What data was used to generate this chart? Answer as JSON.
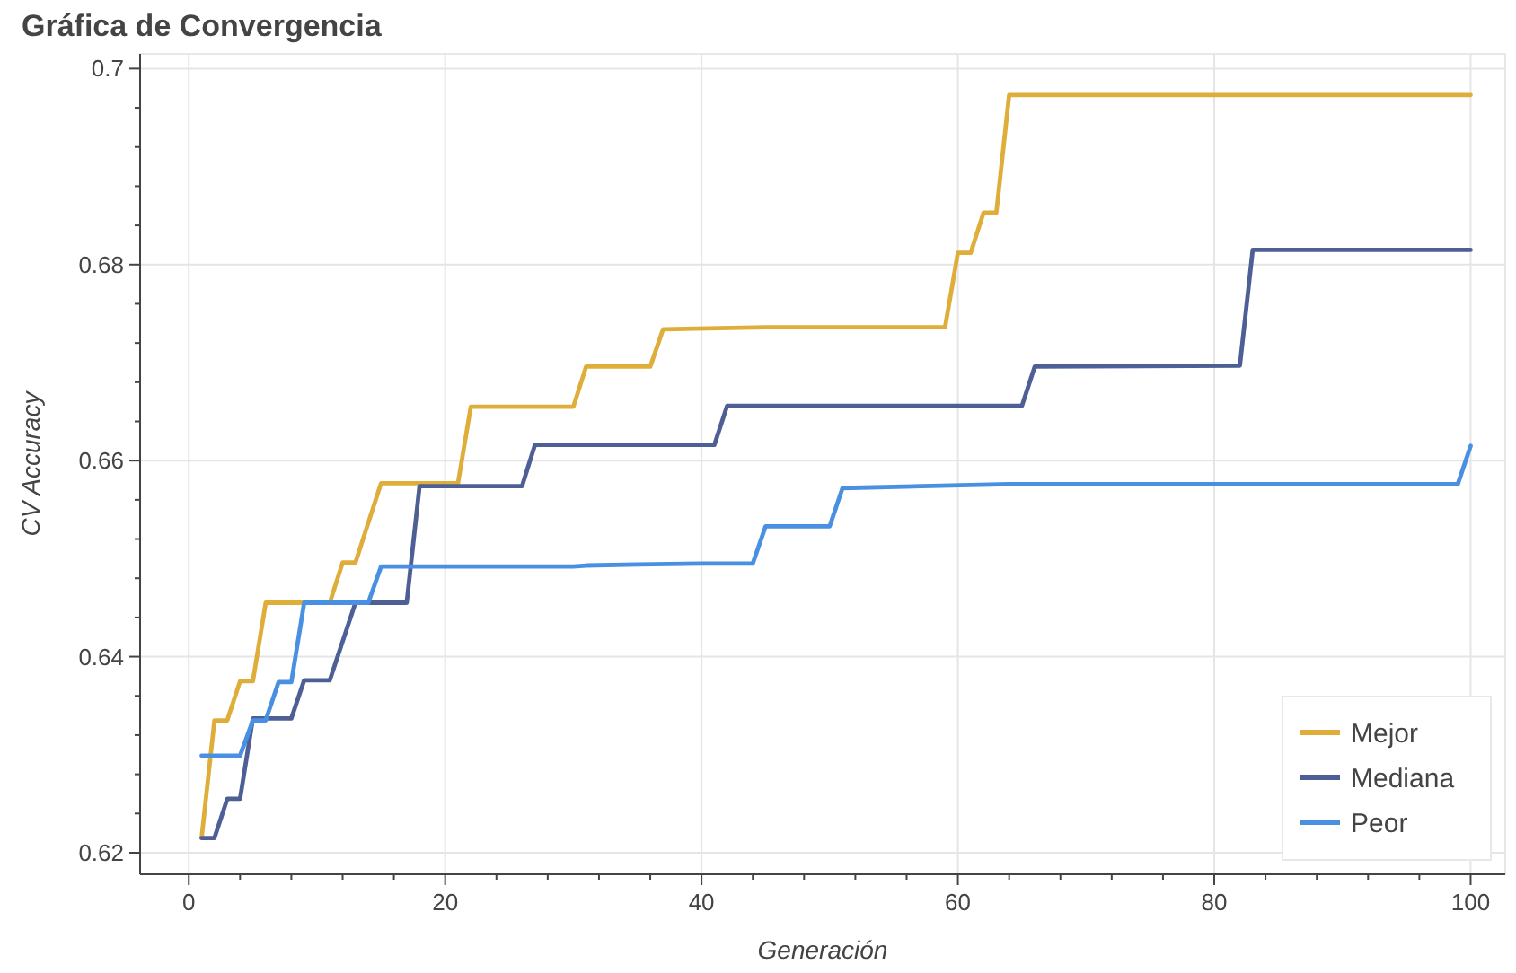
{
  "chart_data": {
    "type": "line",
    "title": "Gráfica de Convergencia",
    "xlabel": "Generación",
    "ylabel": "CV Accuracy",
    "xlim": [
      -3.8,
      102.7
    ],
    "ylim": [
      0.6178,
      0.7015
    ],
    "xticks": [
      0,
      {
        "value": 4,
        "label": null
      },
      {
        "value": 8,
        "label": null
      },
      {
        "value": 12,
        "label": null
      },
      {
        "value": 16,
        "label": null
      },
      20,
      {
        "value": 24,
        "label": null
      },
      {
        "value": 28,
        "label": null
      },
      {
        "value": 32,
        "label": null
      },
      {
        "value": 36,
        "label": null
      },
      40,
      {
        "value": 44,
        "label": null
      },
      {
        "value": 48,
        "label": null
      },
      {
        "value": 52,
        "label": null
      },
      {
        "value": 56,
        "label": null
      },
      60,
      {
        "value": 64,
        "label": null
      },
      {
        "value": 68,
        "label": null
      },
      {
        "value": 72,
        "label": null
      },
      {
        "value": 76,
        "label": null
      },
      80,
      {
        "value": 84,
        "label": null
      },
      {
        "value": 88,
        "label": null
      },
      {
        "value": 92,
        "label": null
      },
      {
        "value": 96,
        "label": null
      },
      100
    ],
    "yticks": [
      0.62,
      {
        "value": 0.624,
        "label": null
      },
      {
        "value": 0.628,
        "label": null
      },
      {
        "value": 0.632,
        "label": null
      },
      {
        "value": 0.636,
        "label": null
      },
      0.64,
      {
        "value": 0.644,
        "label": null
      },
      {
        "value": 0.648,
        "label": null
      },
      {
        "value": 0.652,
        "label": null
      },
      {
        "value": 0.656,
        "label": null
      },
      0.66,
      {
        "value": 0.664,
        "label": null
      },
      {
        "value": 0.668,
        "label": null
      },
      {
        "value": 0.672,
        "label": null
      },
      {
        "value": 0.676,
        "label": null
      },
      0.68,
      {
        "value": 0.684,
        "label": null
      },
      {
        "value": 0.688,
        "label": null
      },
      {
        "value": 0.692,
        "label": null
      },
      {
        "value": 0.696,
        "label": null
      },
      0.7
    ],
    "grid": true,
    "legend": "bottom right",
    "marker": "none",
    "line_style": "solid",
    "series": [
      {
        "name": "Mejor",
        "color": "#dfae3a",
        "x": [
          1,
          2,
          3,
          4,
          5,
          6,
          11,
          12,
          13,
          15,
          21,
          22,
          30,
          31,
          36,
          37,
          45,
          59,
          60,
          61,
          62,
          63,
          64,
          100
        ],
        "values": [
          0.6215,
          0.6335,
          0.6335,
          0.6375,
          0.6375,
          0.6455,
          0.6455,
          0.6496,
          0.6496,
          0.6577,
          0.6577,
          0.6655,
          0.6655,
          0.6696,
          0.6696,
          0.6734,
          0.6736,
          0.6736,
          0.6812,
          0.6812,
          0.6853,
          0.6853,
          0.6973,
          0.6973
        ]
      },
      {
        "name": "Mediana",
        "color": "#4e5f96",
        "x": [
          1,
          2,
          3,
          4,
          5,
          8,
          9,
          11,
          13,
          17,
          18,
          26,
          27,
          41,
          42,
          65,
          66,
          82,
          83,
          100
        ],
        "values": [
          0.6215,
          0.6215,
          0.6255,
          0.6255,
          0.6337,
          0.6337,
          0.6376,
          0.6376,
          0.6455,
          0.6455,
          0.6574,
          0.6574,
          0.6616,
          0.6616,
          0.6656,
          0.6656,
          0.6696,
          0.6697,
          0.6815,
          0.6815
        ]
      },
      {
        "name": "Peor",
        "color": "#4a90e2",
        "x": [
          1,
          4,
          5,
          6,
          7,
          8,
          9,
          14,
          15,
          30,
          31,
          35,
          40,
          44,
          45,
          50,
          51,
          64,
          99,
          100
        ],
        "values": [
          0.6299,
          0.6299,
          0.6335,
          0.6335,
          0.6374,
          0.6374,
          0.6455,
          0.6455,
          0.6492,
          0.6492,
          0.6493,
          0.6494,
          0.6495,
          0.6495,
          0.6533,
          0.6533,
          0.6572,
          0.6576,
          0.6576,
          0.6615
        ]
      }
    ]
  }
}
